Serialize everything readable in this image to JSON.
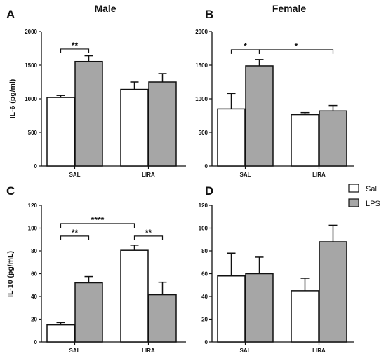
{
  "figure": {
    "col_titles": [
      "Male",
      "Female"
    ],
    "legend": [
      {
        "label": "Sal",
        "color": "#ffffff"
      },
      {
        "label": "LPS",
        "color": "#a6a6a6"
      }
    ]
  },
  "chart_data": [
    {
      "panel": "A",
      "type": "bar",
      "ylabel": "IL-6 (pg/ml)",
      "categories": [
        "SAL",
        "LIRA"
      ],
      "ylim": [
        0,
        2000
      ],
      "yticks": [
        0,
        500,
        1000,
        1500,
        2000
      ],
      "series": [
        {
          "name": "Sal",
          "values": [
            1020,
            1140
          ],
          "errors": [
            30,
            110
          ]
        },
        {
          "name": "LPS",
          "values": [
            1555,
            1250
          ],
          "errors": [
            85,
            125
          ]
        }
      ],
      "annotations": [
        {
          "text": "**",
          "from": [
            0,
            0
          ],
          "to": [
            0,
            1
          ],
          "y": 1740
        }
      ]
    },
    {
      "panel": "B",
      "type": "bar",
      "ylabel": "",
      "categories": [
        "SAL",
        "LIRA"
      ],
      "ylim": [
        0,
        2000
      ],
      "yticks": [
        0,
        500,
        1000,
        1500,
        2000
      ],
      "series": [
        {
          "name": "Sal",
          "values": [
            850,
            765
          ],
          "errors": [
            230,
            30
          ]
        },
        {
          "name": "LPS",
          "values": [
            1490,
            820
          ],
          "errors": [
            95,
            80
          ]
        }
      ],
      "annotations": [
        {
          "text": "*",
          "from": [
            0,
            0
          ],
          "to": [
            0,
            1
          ],
          "y": 1730
        },
        {
          "text": "*",
          "from": [
            0,
            1
          ],
          "to": [
            1,
            1
          ],
          "y": 1730
        }
      ]
    },
    {
      "panel": "C",
      "type": "bar",
      "ylabel": "IL-10 (pg/mL)",
      "categories": [
        "SAL",
        "LIRA"
      ],
      "ylim": [
        0,
        120
      ],
      "yticks": [
        0,
        20,
        40,
        60,
        80,
        100,
        120
      ],
      "series": [
        {
          "name": "Sal",
          "values": [
            15,
            80.5
          ],
          "errors": [
            2,
            4.5
          ]
        },
        {
          "name": "LPS",
          "values": [
            52,
            41.5
          ],
          "errors": [
            5.5,
            11
          ]
        }
      ],
      "annotations": [
        {
          "text": "****",
          "from": [
            0,
            0
          ],
          "to": [
            1,
            0
          ],
          "y": 104
        },
        {
          "text": "**",
          "from": [
            0,
            0
          ],
          "to": [
            0,
            1
          ],
          "y": 93
        },
        {
          "text": "**",
          "from": [
            1,
            0
          ],
          "to": [
            1,
            1
          ],
          "y": 93
        }
      ]
    },
    {
      "panel": "D",
      "type": "bar",
      "ylabel": "",
      "categories": [
        "SAL",
        "LIRA"
      ],
      "ylim": [
        0,
        120
      ],
      "yticks": [
        0,
        20,
        40,
        60,
        80,
        100,
        120
      ],
      "series": [
        {
          "name": "Sal",
          "values": [
            58,
            45
          ],
          "errors": [
            20,
            11
          ]
        },
        {
          "name": "LPS",
          "values": [
            60,
            88
          ],
          "errors": [
            14.5,
            14.5
          ]
        }
      ],
      "annotations": []
    }
  ]
}
